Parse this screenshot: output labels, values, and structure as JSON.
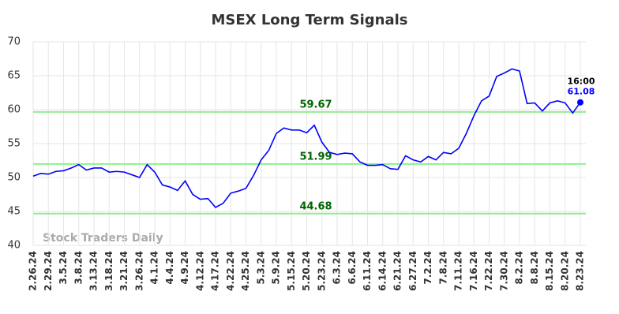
{
  "chart_data": {
    "type": "line",
    "title": "MSEX Long Term Signals",
    "watermark": "Stock Traders Daily",
    "categories": [
      "2.26.24",
      null,
      "2.29.24",
      null,
      "3.5.24",
      null,
      "3.8.24",
      null,
      "3.13.24",
      null,
      "3.18.24",
      null,
      "3.21.24",
      null,
      "3.26.24",
      null,
      "4.1.24",
      null,
      "4.4.24",
      null,
      "4.9.24",
      null,
      "4.12.24",
      null,
      "4.17.24",
      null,
      "4.22.24",
      null,
      "4.25.24",
      null,
      "5.3.24",
      null,
      "5.9.24",
      null,
      "5.15.24",
      null,
      "5.20.24",
      null,
      "5.23.24",
      null,
      "6.3.24",
      null,
      "6.6.24",
      null,
      "6.11.24",
      null,
      "6.14.24",
      null,
      "6.21.24",
      null,
      "6.27.24",
      null,
      "7.2.24",
      null,
      "7.8.24",
      null,
      "7.11.24",
      null,
      "7.16.24",
      null,
      "7.22.24",
      null,
      "7.30.24",
      null,
      "8.2.24",
      null,
      "8.8.24",
      null,
      "8.15.24",
      null,
      "8.20.24",
      null,
      "8.23.24"
    ],
    "values": [
      50.2,
      50.6,
      50.5,
      50.9,
      51.0,
      51.4,
      51.9,
      51.1,
      51.4,
      51.4,
      50.8,
      50.9,
      50.8,
      50.4,
      50.0,
      51.9,
      50.8,
      48.9,
      48.6,
      48.1,
      49.5,
      47.5,
      46.8,
      46.9,
      45.6,
      46.2,
      47.7,
      48.0,
      48.4,
      50.3,
      52.6,
      54.0,
      56.5,
      57.3,
      57.0,
      57.0,
      56.6,
      57.7,
      55.2,
      53.7,
      53.4,
      53.6,
      53.5,
      52.3,
      51.8,
      51.8,
      51.9,
      51.3,
      51.2,
      53.2,
      52.6,
      52.3,
      53.1,
      52.6,
      53.7,
      53.5,
      54.3,
      56.5,
      59.1,
      61.3,
      62.0,
      64.9,
      65.4,
      66.0,
      65.7,
      60.9,
      61.0,
      59.8,
      61.0,
      61.3,
      61.0,
      59.5,
      61.08
    ],
    "color": "#0000ff",
    "last_time": "16:00",
    "levels": [
      59.67,
      51.99,
      44.68
    ],
    "level_color": "#90ee90",
    "level_text_color": "#006400",
    "ylim": [
      40,
      70
    ],
    "yticks": [
      40,
      45,
      50,
      55,
      60,
      65,
      70
    ],
    "grid": true
  }
}
